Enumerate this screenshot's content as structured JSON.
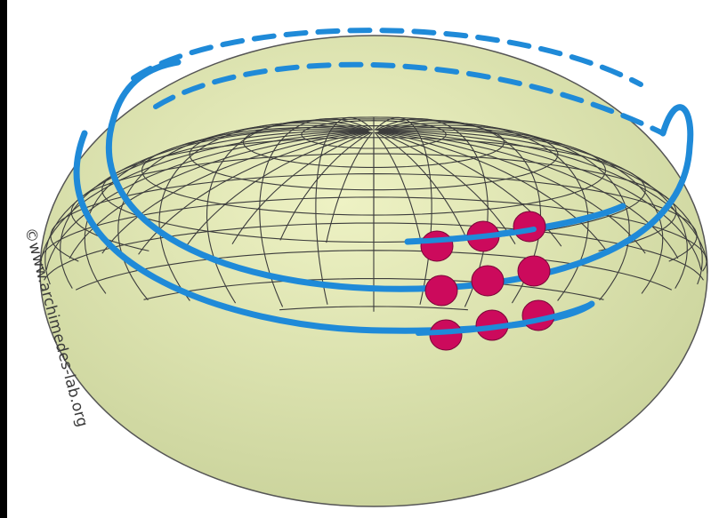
{
  "watermark": "©www.archimedes-lab.org",
  "colors": {
    "background": "#000000",
    "panel": "#ffffff",
    "globe_fill": "#eef2c4",
    "globe_shade": "#c9d29a",
    "grid_line": "#3c3c3c",
    "helix": "#1f8ad8",
    "dots": "#cc0a5c"
  },
  "figure": {
    "description_icon": "ellipsoid-globe",
    "meridian_count": 36,
    "parallel_count": 16,
    "dot_rows": 3,
    "dot_cols": 3
  }
}
